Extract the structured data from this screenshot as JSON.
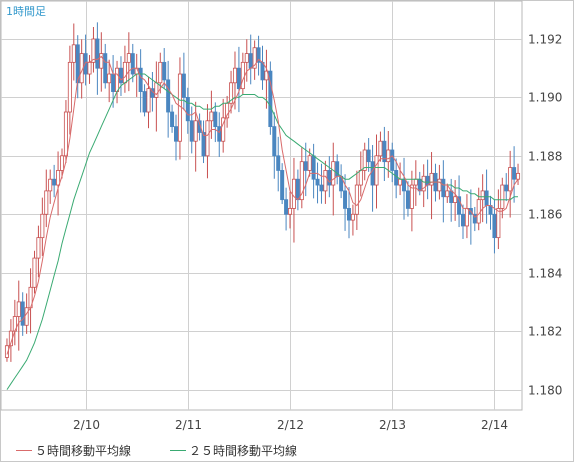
{
  "chart_data": {
    "title": "1時間足",
    "type": "candlestick",
    "xlabel": "",
    "ylabel": "",
    "ylim": [
      1.1793,
      1.1933
    ],
    "y_ticks": [
      1.18,
      1.182,
      1.184,
      1.186,
      1.188,
      1.19,
      1.192
    ],
    "y_tick_labels": [
      "1.180",
      "1.182",
      "1.184",
      "1.186",
      "1.188",
      "1.190",
      "1.192"
    ],
    "x_tick_labels": [
      "2/10",
      "2/11",
      "2/12",
      "2/13",
      "2/14"
    ],
    "x_tick_index": [
      20,
      46,
      72,
      98,
      124
    ],
    "grid": true,
    "legend_position": "bottom",
    "colors": {
      "up": "#c85050",
      "down": "#4a86c0",
      "ma5": "#d96b6b",
      "ma25": "#3aaa72",
      "grid": "#d0d0d0",
      "title": "#3399cc"
    },
    "legend": [
      {
        "label": "５時間移動平均線",
        "color": "#d96b6b"
      },
      {
        "label": "２５時間移動平均線",
        "color": "#3aaa72"
      }
    ],
    "closes": [
      1.1815,
      1.182,
      1.1825,
      1.183,
      1.1822,
      1.1828,
      1.1835,
      1.1845,
      1.1852,
      1.186,
      1.1868,
      1.1872,
      1.187,
      1.1875,
      1.188,
      1.1895,
      1.1912,
      1.1918,
      1.1905,
      1.1915,
      1.1908,
      1.1912,
      1.192,
      1.191,
      1.1915,
      1.1905,
      1.1908,
      1.1902,
      1.191,
      1.1905,
      1.1912,
      1.1915,
      1.1908,
      1.191,
      1.1902,
      1.1895,
      1.1903,
      1.19,
      1.1905,
      1.1912,
      1.1906,
      1.1895,
      1.189,
      1.1885,
      1.1908,
      1.19,
      1.1892,
      1.1885,
      1.1892,
      1.1888,
      1.188,
      1.1892,
      1.1895,
      1.189,
      1.1885,
      1.1893,
      1.1898,
      1.1905,
      1.191,
      1.1903,
      1.1912,
      1.1915,
      1.191,
      1.1917,
      1.1912,
      1.1906,
      1.1909,
      1.189,
      1.188,
      1.1875,
      1.1865,
      1.186,
      1.1862,
      1.1872,
      1.1865,
      1.1878,
      1.1875,
      1.188,
      1.1872,
      1.187,
      1.1868,
      1.1875,
      1.187,
      1.1878,
      1.1873,
      1.1868,
      1.1862,
      1.1858,
      1.186,
      1.187,
      1.1875,
      1.1882,
      1.1878,
      1.187,
      1.188,
      1.1885,
      1.1878,
      1.1882,
      1.1875,
      1.187,
      1.1872,
      1.1868,
      1.1862,
      1.187,
      1.1872,
      1.1868,
      1.1873,
      1.187,
      1.1874,
      1.1868,
      1.1872,
      1.1866,
      1.1868,
      1.1864,
      1.1866,
      1.186,
      1.1856,
      1.1862,
      1.186,
      1.1857,
      1.1865,
      1.1868,
      1.1863,
      1.186,
      1.1852,
      1.1862,
      1.187,
      1.1868,
      1.1876,
      1.1872,
      1.1874
    ],
    "ma5": [
      1.1812,
      1.1816,
      1.182,
      1.1823,
      1.1824,
      1.1826,
      1.1828,
      1.1832,
      1.1837,
      1.1844,
      1.1852,
      1.1859,
      1.1864,
      1.1869,
      1.1873,
      1.1878,
      1.1886,
      1.1896,
      1.1906,
      1.1909,
      1.1912,
      1.1912,
      1.1913,
      1.1913,
      1.1914,
      1.1912,
      1.1912,
      1.1908,
      1.1908,
      1.1906,
      1.1907,
      1.1909,
      1.191,
      1.191,
      1.1907,
      1.1906,
      1.1904,
      1.1902,
      1.1901,
      1.1903,
      1.1905,
      1.1903,
      1.1901,
      1.1898,
      1.1897,
      1.1896,
      1.1894,
      1.1894,
      1.1895,
      1.1891,
      1.1887,
      1.1887,
      1.1889,
      1.1889,
      1.1888,
      1.1891,
      1.1894,
      1.1896,
      1.1899,
      1.1902,
      1.1906,
      1.1909,
      1.191,
      1.1911,
      1.1913,
      1.1912,
      1.191,
      1.1905,
      1.1899,
      1.1892,
      1.1882,
      1.1875,
      1.1868,
      1.1866,
      1.1865,
      1.1867,
      1.187,
      1.1874,
      1.1874,
      1.1874,
      1.1873,
      1.1873,
      1.1871,
      1.1872,
      1.1873,
      1.1873,
      1.187,
      1.1868,
      1.1864,
      1.1863,
      1.1865,
      1.1869,
      1.1873,
      1.1875,
      1.1877,
      1.1879,
      1.1879,
      1.1879,
      1.188,
      1.1878,
      1.1875,
      1.1873,
      1.187,
      1.1869,
      1.1869,
      1.1868,
      1.1869,
      1.187,
      1.1871,
      1.1871,
      1.1871,
      1.187,
      1.187,
      1.1868,
      1.1867,
      1.1865,
      1.1862,
      1.1862,
      1.1861,
      1.1859,
      1.186,
      1.1862,
      1.1863,
      1.1863,
      1.1862,
      1.1861,
      1.1861,
      1.1862,
      1.1866,
      1.187,
      1.1872
    ],
    "ma25": [
      1.18,
      1.1802,
      1.1804,
      1.1806,
      1.1808,
      1.181,
      1.1813,
      1.1816,
      1.182,
      1.1824,
      1.1829,
      1.1834,
      1.1839,
      1.1844,
      1.185,
      1.1855,
      1.186,
      1.1865,
      1.1869,
      1.1873,
      1.1877,
      1.1881,
      1.1884,
      1.1887,
      1.189,
      1.1893,
      1.1896,
      1.1899,
      1.1902,
      1.1904,
      1.1905,
      1.1906,
      1.1907,
      1.1908,
      1.1908,
      1.1908,
      1.1907,
      1.1906,
      1.1905,
      1.1904,
      1.1903,
      1.1902,
      1.1901,
      1.19,
      1.1899,
      1.1899,
      1.1898,
      1.1898,
      1.1897,
      1.1897,
      1.1896,
      1.1896,
      1.1896,
      1.1897,
      1.1897,
      1.1898,
      1.1898,
      1.1899,
      1.19,
      1.19,
      1.1901,
      1.1901,
      1.1901,
      1.1901,
      1.19,
      1.19,
      1.1899,
      1.1897,
      1.1894,
      1.1891,
      1.1889,
      1.1887,
      1.1886,
      1.1885,
      1.1884,
      1.1883,
      1.1882,
      1.1881,
      1.188,
      1.1879,
      1.1878,
      1.1877,
      1.1876,
      1.1875,
      1.1874,
      1.1873,
      1.1872,
      1.1872,
      1.1873,
      1.1874,
      1.1875,
      1.1876,
      1.1876,
      1.1876,
      1.1876,
      1.1876,
      1.1876,
      1.1875,
      1.1874,
      1.1873,
      1.1872,
      1.1872,
      1.1872,
      1.1872,
      1.1872,
      1.1872,
      1.1871,
      1.1871,
      1.1871,
      1.1871,
      1.1871,
      1.187,
      1.187,
      1.187,
      1.1869,
      1.1869,
      1.1868,
      1.1868,
      1.1867,
      1.1867,
      1.1866,
      1.1866,
      1.1866,
      1.1866,
      1.1865,
      1.1865,
      1.1865,
      1.1865,
      1.1865,
      1.1866,
      1.1866
    ]
  }
}
